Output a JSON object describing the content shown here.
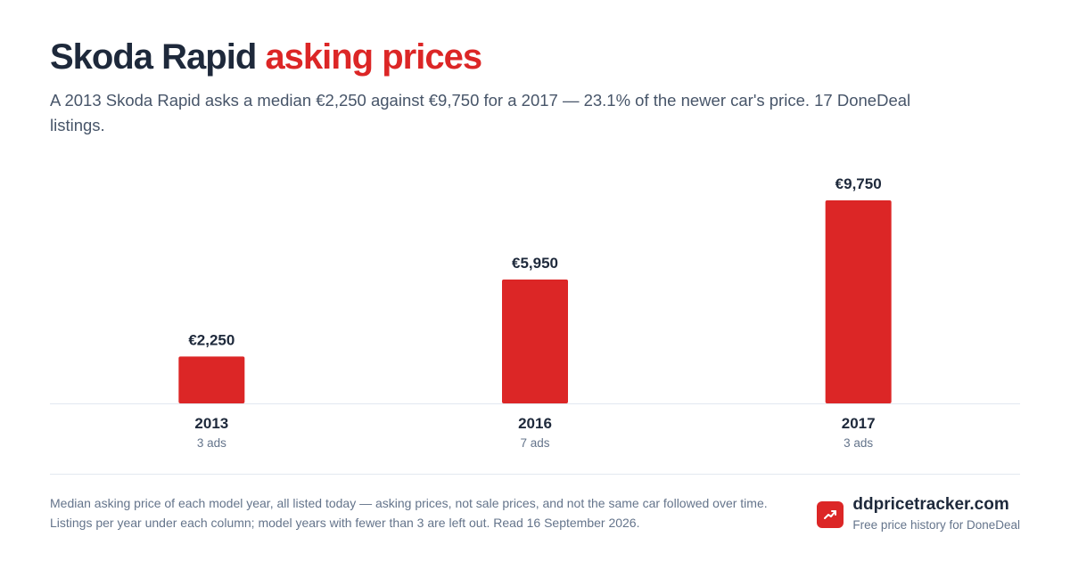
{
  "header": {
    "title_main": "Skoda Rapid",
    "title_accent": "asking prices",
    "subtitle": "A 2013 Skoda Rapid asks a median €2,250 against €9,750 for a 2017 — 23.1% of the newer car's price. 17 DoneDeal listings."
  },
  "chart_data": {
    "type": "bar",
    "categories": [
      "2013",
      "2016",
      "2017"
    ],
    "values": [
      2250,
      5950,
      9750
    ],
    "value_labels": [
      "€2,250",
      "€5,950",
      "€9,750"
    ],
    "sublabels": [
      "3 ads",
      "7 ads",
      "3 ads"
    ],
    "ylim": [
      0,
      10000
    ],
    "grid": false,
    "bar_color": "#dc2626"
  },
  "footer": {
    "note": "Median asking price of each model year, all listed today — asking prices, not sale prices, and not the same car followed over time. Listings per year under each column; model years with fewer than 3 are left out. Read 16 September 2026.",
    "brand_name": "ddpricetracker.com",
    "brand_tagline": "Free price history for DoneDeal",
    "brand_icon": "trending-up-icon"
  },
  "colors": {
    "accent": "#dc2626",
    "text": "#1e293b",
    "muted": "#64748b"
  }
}
